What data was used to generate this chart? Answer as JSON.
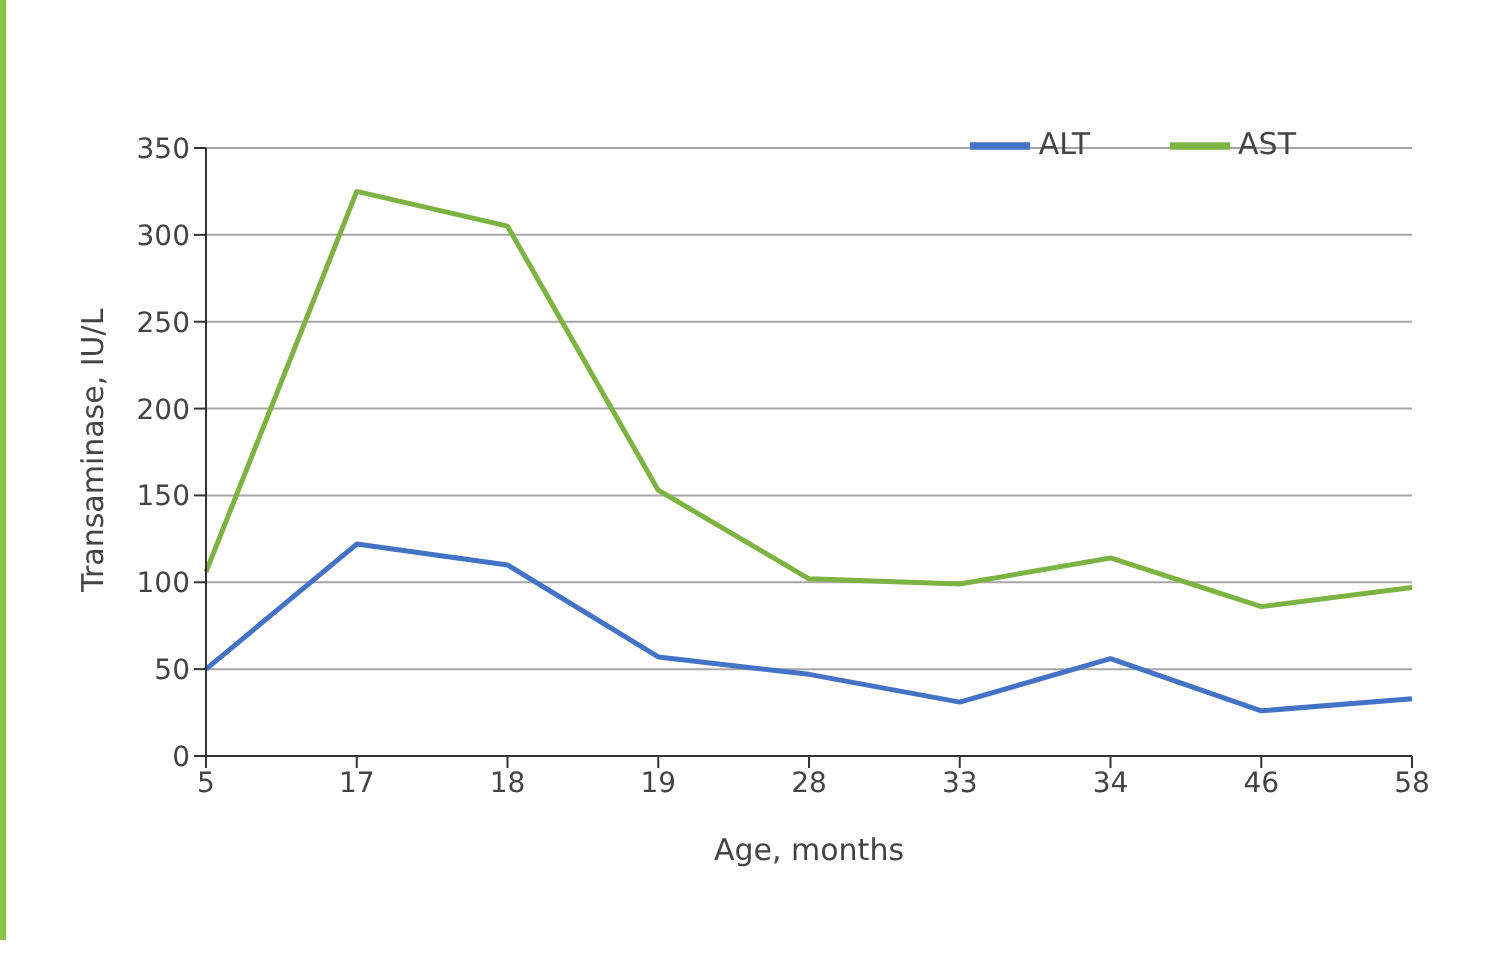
{
  "chart_data": {
    "type": "line",
    "xlabel": "Age, months",
    "ylabel": "Transaminase, IU/L",
    "categories": [
      "5",
      "17",
      "18",
      "19",
      "28",
      "33",
      "34",
      "46",
      "58"
    ],
    "series": [
      {
        "name": "AST",
        "color": "#7cb342",
        "values": [
          106,
          325,
          305,
          153,
          102,
          99,
          114,
          86,
          97
        ]
      },
      {
        "name": "ALT",
        "color": "#4472c4",
        "values": [
          50,
          122,
          110,
          57,
          47,
          31,
          56,
          26,
          33
        ]
      }
    ],
    "ylim": [
      0,
      350
    ],
    "yticks": [
      0,
      50,
      100,
      150,
      200,
      250,
      300,
      350
    ],
    "grid": "y",
    "legend": "top right",
    "marker": "none",
    "line_style": "solid"
  }
}
